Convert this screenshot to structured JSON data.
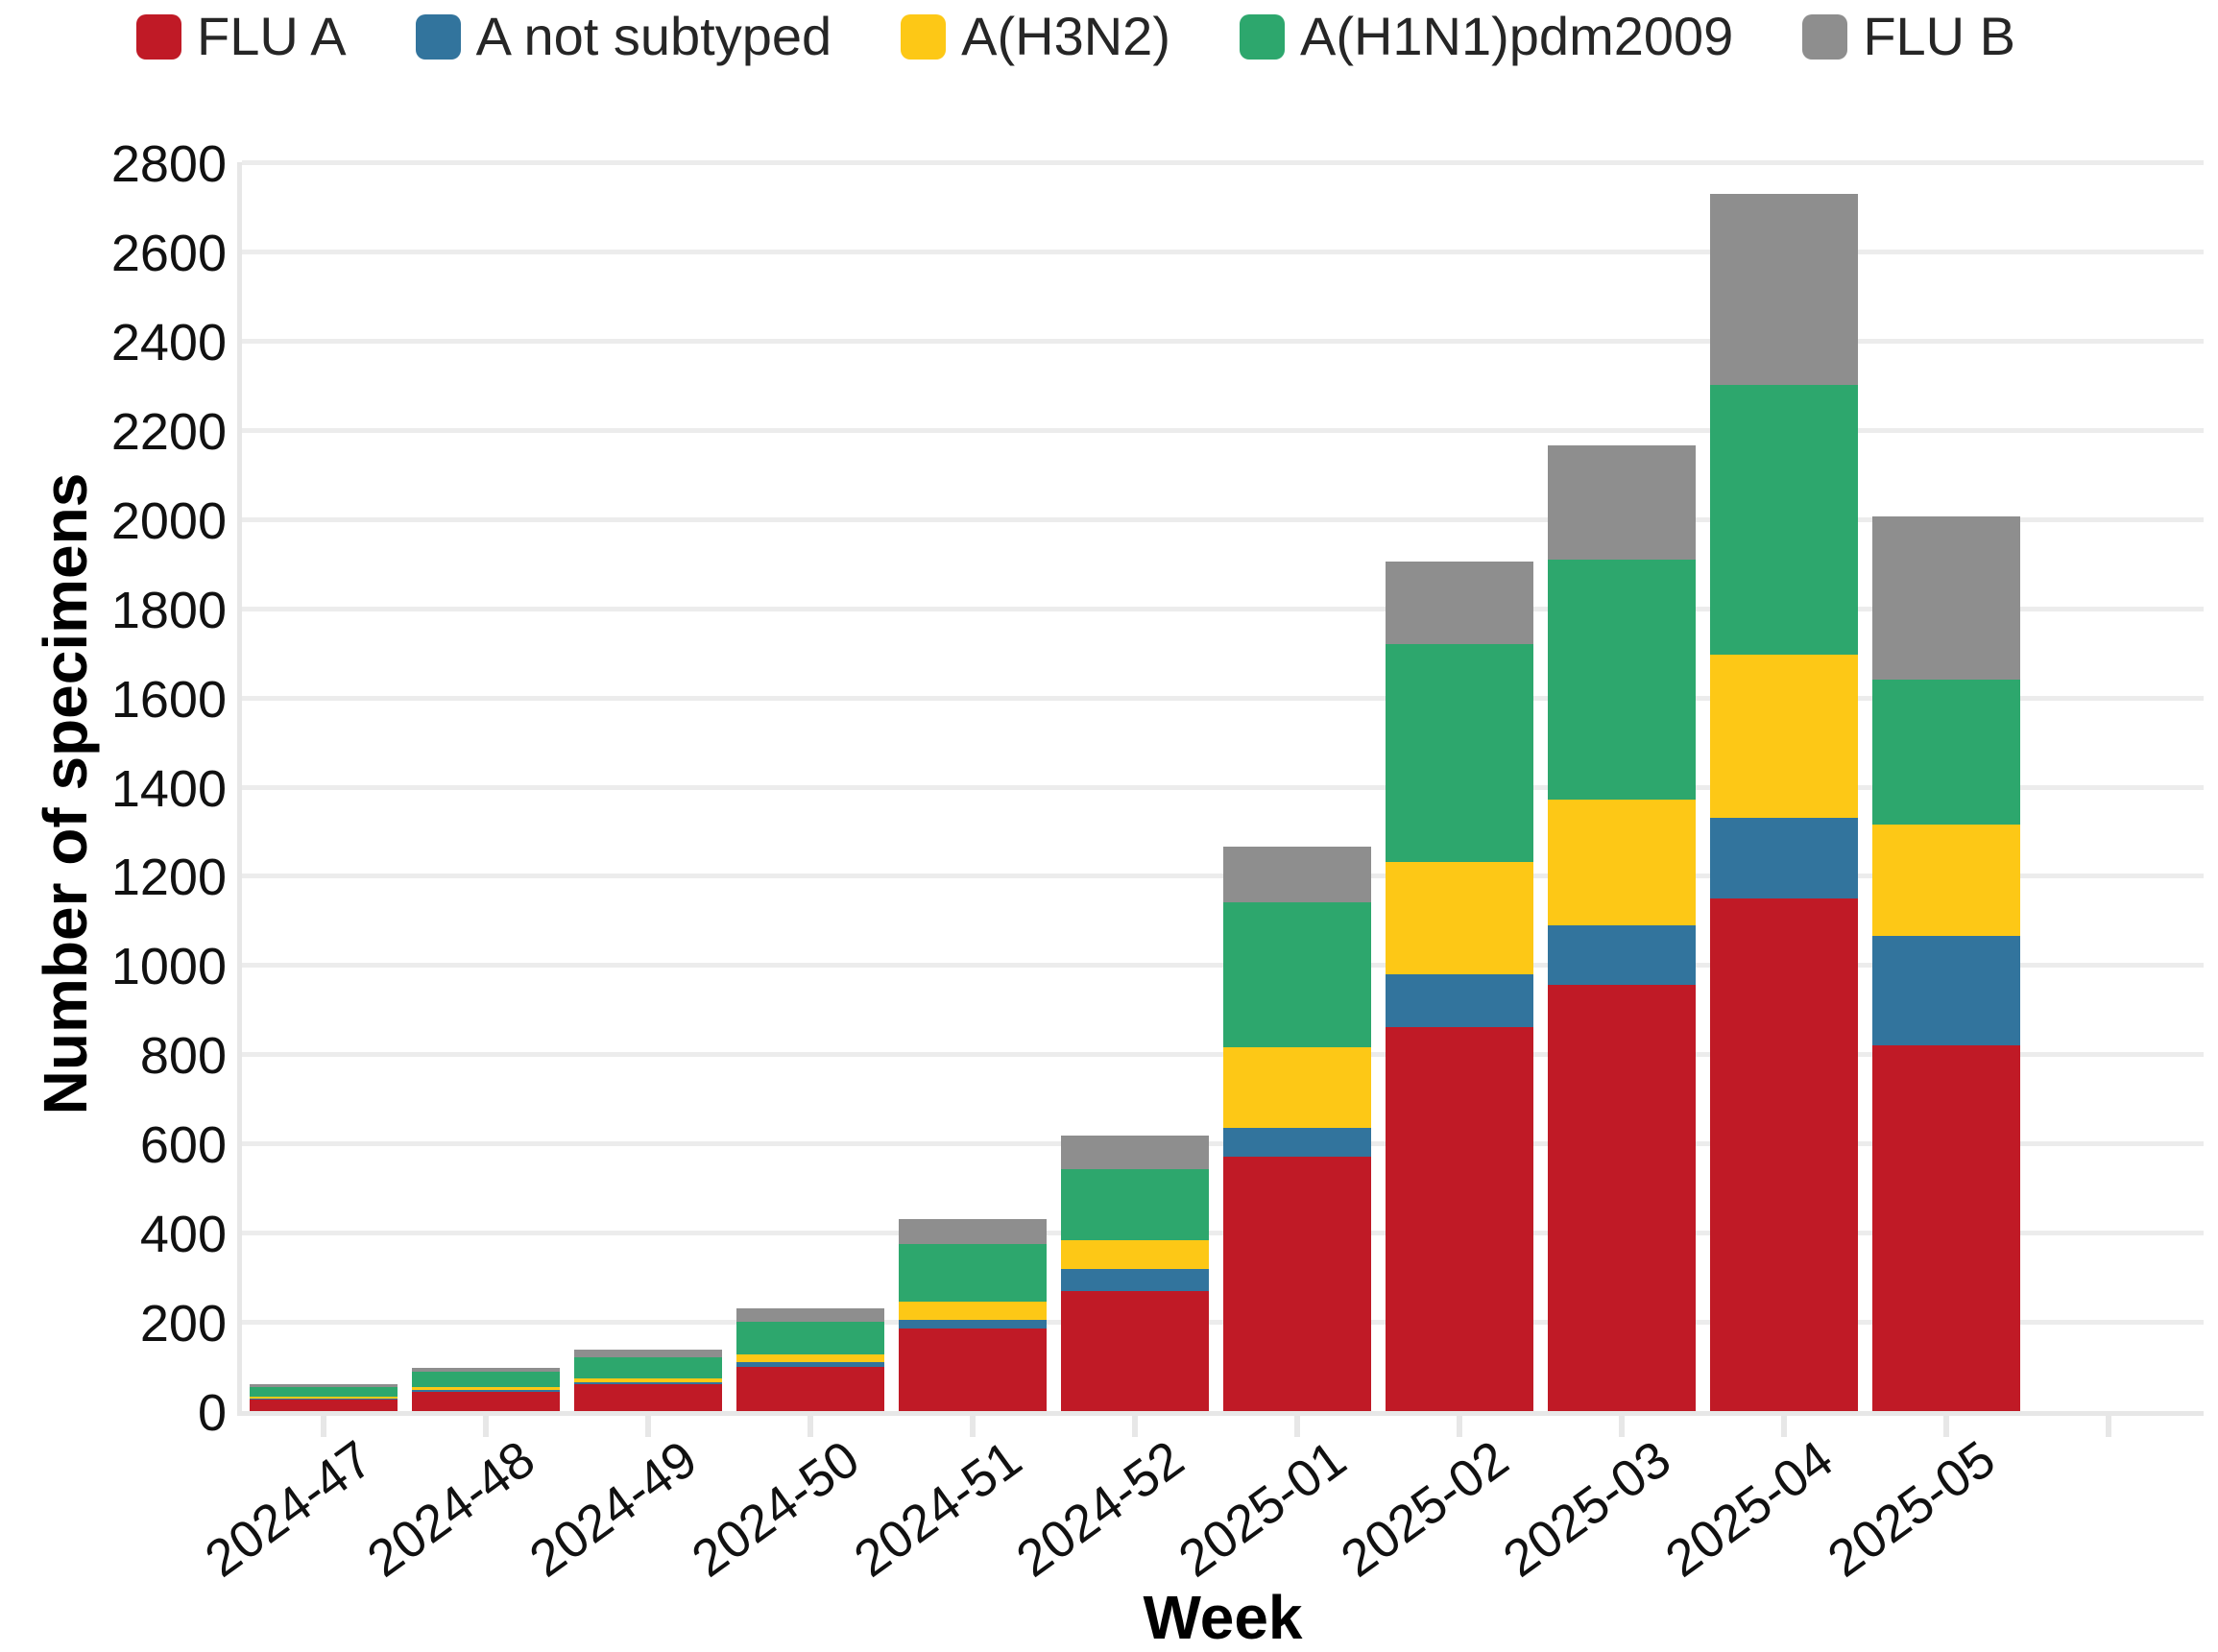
{
  "chart_data": {
    "type": "bar",
    "stacked": true,
    "title": "",
    "xlabel": "Week",
    "ylabel": "Number of specimens",
    "ylim": [
      0,
      2800
    ],
    "ytick_step": 200,
    "yticks": [
      0,
      200,
      400,
      600,
      800,
      1000,
      1200,
      1400,
      1600,
      1800,
      2000,
      2200,
      2400,
      2600,
      2800
    ],
    "grid": "horizontal",
    "legend_position": "top",
    "background": "#ffffff",
    "gridline_color": "#ececec",
    "axisline_color": "#e7e7e7",
    "categories": [
      "2024-47",
      "2024-48",
      "2024-49",
      "2024-50",
      "2024-51",
      "2024-52",
      "2025-01",
      "2025-02",
      "2025-03",
      "2025-04",
      "2025-05"
    ],
    "series": [
      {
        "name": "FLU A",
        "color": "#c01a26",
        "values": [
          27,
          44,
          60,
          100,
          185,
          270,
          570,
          860,
          955,
          1150,
          820
        ]
      },
      {
        "name": "A not subtyped",
        "color": "#32749d",
        "values": [
          1,
          3,
          5,
          9,
          20,
          48,
          65,
          120,
          135,
          180,
          245
        ]
      },
      {
        "name": "A(H3N2)",
        "color": "#fdc816",
        "values": [
          4,
          6,
          9,
          19,
          40,
          65,
          180,
          250,
          280,
          365,
          250
        ]
      },
      {
        "name": "A(H1N1)pdm2009",
        "color": "#2da76d",
        "values": [
          22,
          35,
          46,
          72,
          130,
          160,
          325,
          490,
          540,
          605,
          325
        ]
      },
      {
        "name": "FLU B",
        "color": "#8e8e8e",
        "values": [
          6,
          9,
          17,
          30,
          55,
          75,
          125,
          185,
          255,
          430,
          365
        ]
      }
    ],
    "totals": [
      60,
      97,
      137,
      230,
      430,
      618,
      1265,
      1905,
      2165,
      2730,
      2005
    ]
  }
}
